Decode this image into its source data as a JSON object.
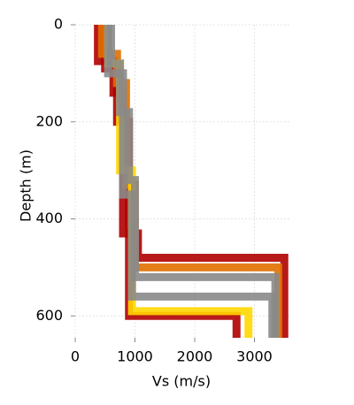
{
  "chart_data": {
    "type": "line",
    "x_label": "Vs (m/s)",
    "y_label": "Depth (m)",
    "xlim": [
      0,
      3600
    ],
    "ylim": [
      645,
      0
    ],
    "xticks": [
      0,
      1000,
      2000,
      3000
    ],
    "yticks": [
      0,
      200,
      400,
      600
    ],
    "grid": true,
    "series": [
      {
        "color": "#b00000",
        "x": [
          380,
          380,
          640,
          640,
          800,
          800,
          1050,
          1050,
          3500,
          3500
        ],
        "y": [
          0,
          75,
          75,
          140,
          140,
          430,
          430,
          480,
          480,
          645
        ]
      },
      {
        "color": "#b00000",
        "x": [
          500,
          500,
          700,
          700,
          900,
          900,
          2700,
          2700
        ],
        "y": [
          0,
          90,
          90,
          200,
          200,
          600,
          600,
          645
        ]
      },
      {
        "color": "#e07000",
        "x": [
          450,
          450,
          700,
          700,
          850,
          850,
          1000,
          1000,
          3400,
          3400
        ],
        "y": [
          0,
          60,
          60,
          120,
          120,
          330,
          330,
          500,
          500,
          645
        ]
      },
      {
        "color": "#ffd700",
        "x": [
          550,
          550,
          750,
          750,
          950,
          950,
          2900,
          2900
        ],
        "y": [
          0,
          80,
          80,
          300,
          300,
          590,
          590,
          645
        ]
      },
      {
        "color": "#8a8a8a",
        "x": [
          600,
          600,
          750,
          750,
          900,
          900,
          1000,
          1000,
          3350,
          3350
        ],
        "y": [
          0,
          80,
          80,
          180,
          180,
          320,
          320,
          520,
          520,
          645
        ]
      },
      {
        "color": "#8a8a8a",
        "x": [
          550,
          550,
          800,
          800,
          950,
          950,
          3300,
          3300
        ],
        "y": [
          0,
          100,
          100,
          350,
          350,
          560,
          560,
          645
        ]
      }
    ]
  }
}
